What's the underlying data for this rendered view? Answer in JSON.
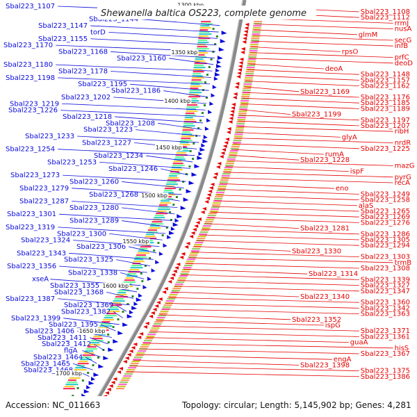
{
  "title": "Shewanella baltica OS223, complete genome",
  "accession_text": "Accession: NC_011663",
  "summary_text": "Topology: circular; Length: 5,145,902 bp; Genes: 4,281",
  "colors": {
    "forward": "#0a0adc",
    "reverse": "#e60000",
    "backbone": "#8a8a8a",
    "gc_skew": "#2a8a2a"
  },
  "kbp_marks": [
    {
      "text": "1300 kbp"
    },
    {
      "text": "1350 kbp"
    },
    {
      "text": "1400 kbp"
    },
    {
      "text": "1450 kbp"
    },
    {
      "text": "1500 kbp"
    },
    {
      "text": "1550 kbp"
    },
    {
      "text": "1600 kbp"
    },
    {
      "text": "1650 kbp"
    },
    {
      "text": "1700 kbp"
    }
  ],
  "left_labels": [
    "Sbal223_1107",
    "Sbal223_1132",
    "Sbal223_1144",
    "Sbal223_1147",
    "torD",
    "Sbal223_1155",
    "Sbal223_1170",
    "Sbal223_1168",
    "Sbal223_1160",
    "Sbal223_1180",
    "Sbal223_1178",
    "Sbal223_1198",
    "Sbal223_1195",
    "Sbal223_1186",
    "Sbal223_1202",
    "Sbal223_1219",
    "Sbal223_1226",
    "Sbal223_1218",
    "Sbal223_1208",
    "Sbal223_1223",
    "Sbal223_1233",
    "Sbal223_1227",
    "Sbal223_1254",
    "Sbal223_1234",
    "Sbal223_1253",
    "Sbal223_1246",
    "Sbal223_1273",
    "Sbal223_1260",
    "Sbal223_1279",
    "Sbal223_1268",
    "Sbal223_1287",
    "Sbal223_1280",
    "Sbal223_1301",
    "Sbal223_1289",
    "Sbal223_1319",
    "Sbal223_1300",
    "Sbal223_1324",
    "Sbal223_1306",
    "Sbal223_1343",
    "Sbal223_1325",
    "Sbal223_1356",
    "Sbal223_1338",
    "xseA",
    "Sbal223_1355",
    "Sbal223_1368",
    "Sbal223_1387",
    "Sbal223_1369",
    "Sbal223_1382",
    "Sbal223_1399",
    "Sbal223_1395",
    "Sbal223_1406",
    "Sbal223_1411",
    "Sbal223_1412",
    "flgA",
    "Sbal223_1464",
    "Sbal223_1465",
    "Sbal223_1468"
  ],
  "right_labels": [
    "Sbal223_1108",
    "Sbal223_1112",
    "rrmJ",
    "nusA",
    "glmM",
    "secG",
    "infB",
    "rpsO",
    "prfC",
    "deoD",
    "deoA",
    "Sbal223_1148",
    "Sbal223_1157",
    "Sbal223_1162",
    "Sbal223_1169",
    "Sbal223_1176",
    "Sbal223_1185",
    "Sbal223_1189",
    "Sbal223_1199",
    "Sbal223_1197",
    "Sbal223_1207",
    "ribH",
    "glyA",
    "nrdR",
    "Sbal223_1225",
    "rumA",
    "Sbal223_1228",
    "mazG",
    "ispF",
    "pyrG",
    "recA",
    "eno",
    "Sbal223_1249",
    "Sbal223_1258",
    "alaS",
    "Sbal223_1265",
    "Sbal223_1269",
    "Sbal223_1276",
    "Sbal223_1281",
    "Sbal223_1286",
    "Sbal223_1305",
    "Sbal223_1294",
    "Sbal223_1330",
    "Sbal223_1303",
    "trmB",
    "Sbal223_1308",
    "Sbal223_1314",
    "Sbal223_1339",
    "Sbal223_1327",
    "Sbal223_1347",
    "Sbal223_1340",
    "Sbal223_1360",
    "Sbal223_1342",
    "Sbal223_1363",
    "Sbal223_1352",
    "ispG",
    "Sbal223_1371",
    "Sbal223_1361",
    "guaA",
    "hisS",
    "Sbal223_1367",
    "engA",
    "Sbal223_1398",
    "Sbal223_1375",
    "Sbal223_1386"
  ]
}
